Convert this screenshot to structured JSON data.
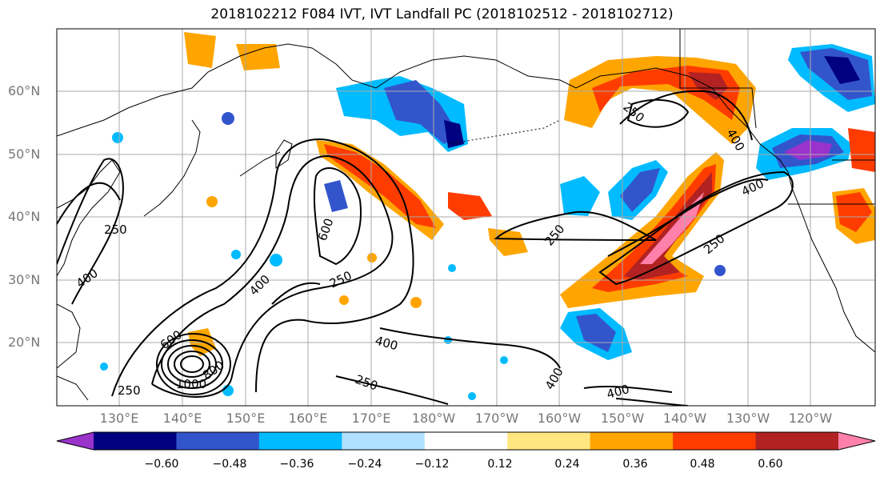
{
  "title": "2018102212 F084 IVT, IVT Landfall PC (2018102512 - 2018102712)",
  "lat_labels": [
    "60°N",
    "50°N",
    "40°N",
    "30°N",
    "20°N"
  ],
  "lon_labels": [
    "130°E",
    "140°E",
    "150°E",
    "160°E",
    "170°E",
    "180°W",
    "170°W",
    "160°W",
    "150°W",
    "140°W",
    "130°W",
    "120°W"
  ],
  "contour_labels": [
    "250",
    "400",
    "600",
    "800",
    "1000",
    "250",
    "400",
    "600",
    "250",
    "400",
    "250",
    "400",
    "250",
    "400",
    "250",
    "400",
    "250",
    "400"
  ],
  "colorbar": {
    "ticks": [
      "−0.60",
      "−0.48",
      "−0.36",
      "−0.24",
      "−0.12",
      "0.12",
      "0.24",
      "0.36",
      "0.48",
      "0.60"
    ],
    "colors": [
      "#9933cc",
      "#000080",
      "#3355cc",
      "#00bbff",
      "#b0e0ff",
      "#ffffff",
      "#ffe680",
      "#ffa500",
      "#ff3c00",
      "#b22222",
      "#ff80aa"
    ]
  }
}
